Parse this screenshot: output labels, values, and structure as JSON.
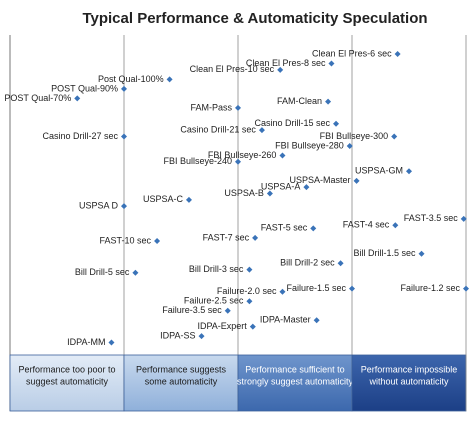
{
  "chart_data": {
    "type": "scatter",
    "title": "Typical Performance & Automaticity Speculation",
    "xlim": [
      0,
      4
    ],
    "ylim": [
      0,
      100
    ],
    "color": "#3a73b8",
    "zones": [
      [
        "Performance too poor to",
        "suggest automaticity"
      ],
      [
        "Performance suggests",
        "some automaticity"
      ],
      [
        "Performance sufficient to",
        "strongly suggest automaticity"
      ],
      [
        "Performance impossible",
        "without automaticity"
      ]
    ],
    "points": [
      {
        "label": "Clean El Pres-6 sec",
        "x": 3.4,
        "y": 94
      },
      {
        "label": "Clean El Pres-8 sec",
        "x": 2.82,
        "y": 91
      },
      {
        "label": "Clean El Pres-10 sec",
        "x": 2.37,
        "y": 89
      },
      {
        "label": "Post Qual-100%",
        "x": 1.4,
        "y": 86
      },
      {
        "label": "POST Qual-90%",
        "x": 1.0,
        "y": 83
      },
      {
        "label": "POST Qual-70%",
        "x": 0.59,
        "y": 80
      },
      {
        "label": "FAM-Pass",
        "x": 2.0,
        "y": 77
      },
      {
        "label": "FAM-Clean",
        "x": 2.79,
        "y": 79
      },
      {
        "label": "Casino Drill-15 sec",
        "x": 2.86,
        "y": 72
      },
      {
        "label": "Casino Drill-21 sec",
        "x": 2.21,
        "y": 70
      },
      {
        "label": "Casino Drill-27 sec",
        "x": 1.0,
        "y": 68
      },
      {
        "label": "FBI Bullseye-300",
        "x": 3.37,
        "y": 68
      },
      {
        "label": "FBI Bullseye-280",
        "x": 2.98,
        "y": 65
      },
      {
        "label": "FBI Bullseye-260",
        "x": 2.39,
        "y": 62
      },
      {
        "label": "FBI Bullseye-240",
        "x": 2.0,
        "y": 60
      },
      {
        "label": "USPSA-GM",
        "x": 3.5,
        "y": 57
      },
      {
        "label": "USPSA-Master",
        "x": 3.04,
        "y": 54
      },
      {
        "label": "USPSA-A",
        "x": 2.6,
        "y": 52
      },
      {
        "label": "USPSA-B",
        "x": 2.28,
        "y": 50
      },
      {
        "label": "USPSA-C",
        "x": 1.57,
        "y": 48
      },
      {
        "label": "USPSA D",
        "x": 1.0,
        "y": 46
      },
      {
        "label": "FAST-3.5 sec",
        "x": 3.98,
        "y": 42
      },
      {
        "label": "FAST-4 sec",
        "x": 3.38,
        "y": 40
      },
      {
        "label": "FAST-5 sec",
        "x": 2.66,
        "y": 39
      },
      {
        "label": "FAST-7 sec",
        "x": 2.15,
        "y": 36
      },
      {
        "label": "FAST-10 sec",
        "x": 1.29,
        "y": 35
      },
      {
        "label": "Bill Drill-1.5 sec",
        "x": 3.61,
        "y": 31
      },
      {
        "label": "Bill Drill-2 sec",
        "x": 2.9,
        "y": 28
      },
      {
        "label": "Bill Drill-3 sec",
        "x": 2.1,
        "y": 26
      },
      {
        "label": "Bill Drill-5 sec",
        "x": 1.1,
        "y": 25
      },
      {
        "label": "Failure-1.2 sec",
        "x": 4.0,
        "y": 20
      },
      {
        "label": "Failure-1.5 sec",
        "x": 3.0,
        "y": 20
      },
      {
        "label": "Failure-2.0 sec",
        "x": 2.39,
        "y": 19
      },
      {
        "label": "Failure-2.5 sec",
        "x": 2.1,
        "y": 16
      },
      {
        "label": "Failure-3.5 sec",
        "x": 1.91,
        "y": 13
      },
      {
        "label": "IDPA-Master",
        "x": 2.69,
        "y": 10
      },
      {
        "label": "IDPA-Expert",
        "x": 2.13,
        "y": 8
      },
      {
        "label": "IDPA-SS",
        "x": 1.68,
        "y": 5
      },
      {
        "label": "IDPA-MM",
        "x": 0.89,
        "y": 3
      }
    ]
  }
}
